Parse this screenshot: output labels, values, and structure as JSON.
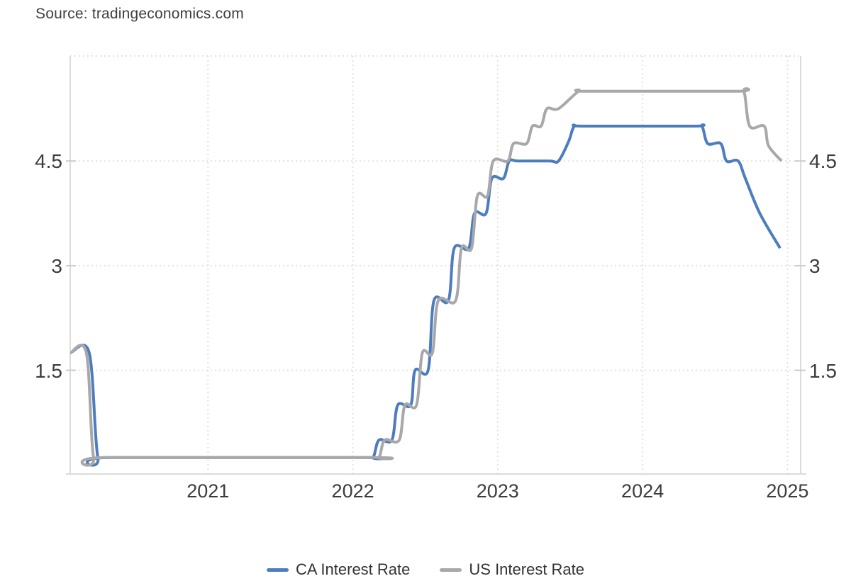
{
  "source_label": "Source: tradingeconomics.com",
  "chart_data": {
    "type": "line",
    "title": "",
    "x_axis": {
      "tick_labels": [
        "2021",
        "2022",
        "2023",
        "2024",
        "2025"
      ],
      "tick_positions": [
        2021,
        2022,
        2023,
        2024,
        2025
      ],
      "domain": [
        2020.05,
        2025.09
      ],
      "grid": "dotted"
    },
    "y_axis": {
      "tick_labels": [
        "1.5",
        "3",
        "4.5"
      ],
      "tick_positions": [
        1.5,
        3,
        4.5
      ],
      "domain": [
        0,
        6
      ],
      "sides": "both",
      "grid": "dotted"
    },
    "legend_position": "bottom-center",
    "series": [
      {
        "name": "CA Interest Rate",
        "color": "#4d7dbe",
        "unit": "%",
        "points": [
          [
            2020.05,
            1.75
          ],
          [
            2020.18,
            1.75
          ],
          [
            2020.24,
            0.25
          ],
          [
            2020.32,
            0.25
          ],
          [
            2022.08,
            0.25
          ],
          [
            2022.14,
            0.25
          ],
          [
            2022.18,
            0.5
          ],
          [
            2022.27,
            0.5
          ],
          [
            2022.31,
            1.0
          ],
          [
            2022.4,
            1.0
          ],
          [
            2022.43,
            1.5
          ],
          [
            2022.52,
            1.5
          ],
          [
            2022.56,
            2.5
          ],
          [
            2022.66,
            2.5
          ],
          [
            2022.7,
            3.25
          ],
          [
            2022.8,
            3.25
          ],
          [
            2022.84,
            3.75
          ],
          [
            2022.92,
            3.75
          ],
          [
            2022.96,
            4.25
          ],
          [
            2023.04,
            4.25
          ],
          [
            2023.08,
            4.5
          ],
          [
            2023.14,
            4.5
          ],
          [
            2023.36,
            4.5
          ],
          [
            2023.42,
            4.5
          ],
          [
            2023.49,
            4.78
          ],
          [
            2023.53,
            5.0
          ],
          [
            2023.6,
            5.0
          ],
          [
            2024.35,
            5.0
          ],
          [
            2024.41,
            5.0
          ],
          [
            2024.45,
            4.75
          ],
          [
            2024.54,
            4.75
          ],
          [
            2024.58,
            4.5
          ],
          [
            2024.66,
            4.5
          ],
          [
            2024.71,
            4.25
          ],
          [
            2024.81,
            3.75
          ],
          [
            2024.95,
            3.25
          ]
        ]
      },
      {
        "name": "US Interest Rate",
        "color": "#a8a8ab",
        "unit": "%",
        "points": [
          [
            2020.05,
            1.75
          ],
          [
            2020.16,
            1.75
          ],
          [
            2020.21,
            0.25
          ],
          [
            2020.29,
            0.25
          ],
          [
            2022.12,
            0.25
          ],
          [
            2022.18,
            0.25
          ],
          [
            2022.22,
            0.5
          ],
          [
            2022.32,
            0.5
          ],
          [
            2022.36,
            1.0
          ],
          [
            2022.44,
            1.0
          ],
          [
            2022.48,
            1.75
          ],
          [
            2022.55,
            1.75
          ],
          [
            2022.59,
            2.5
          ],
          [
            2022.71,
            2.5
          ],
          [
            2022.75,
            3.25
          ],
          [
            2022.82,
            3.25
          ],
          [
            2022.86,
            4.0
          ],
          [
            2022.93,
            4.0
          ],
          [
            2022.97,
            4.5
          ],
          [
            2023.07,
            4.5
          ],
          [
            2023.11,
            4.75
          ],
          [
            2023.2,
            4.75
          ],
          [
            2023.24,
            5.0
          ],
          [
            2023.3,
            5.0
          ],
          [
            2023.34,
            5.25
          ],
          [
            2023.42,
            5.25
          ],
          [
            2023.56,
            5.5
          ],
          [
            2023.63,
            5.5
          ],
          [
            2024.64,
            5.5
          ],
          [
            2024.7,
            5.5
          ],
          [
            2024.74,
            5.0
          ],
          [
            2024.84,
            5.0
          ],
          [
            2024.87,
            4.72
          ],
          [
            2024.96,
            4.5
          ]
        ]
      }
    ]
  },
  "legend": {
    "items": [
      {
        "label": "CA Interest Rate",
        "color": "#4d7dbe"
      },
      {
        "label": "US Interest Rate",
        "color": "#a8a8ab"
      }
    ]
  },
  "colors": {
    "grid_dotted": "#e2e2e2",
    "axis_line": "#dbdbdb",
    "tick": "#cccccc",
    "axis_text": "#3c3c3c"
  }
}
